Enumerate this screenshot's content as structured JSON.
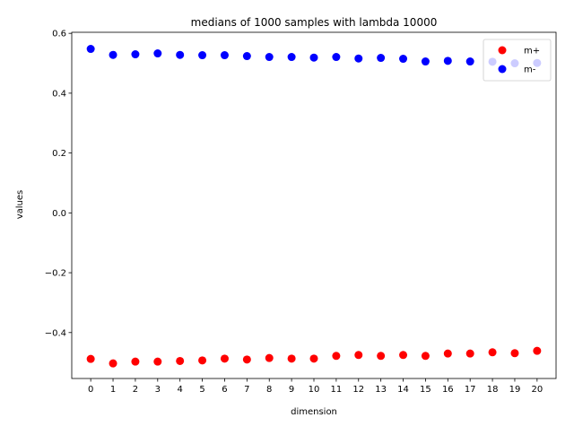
{
  "chart_data": {
    "type": "scatter",
    "title": "medians of 1000 samples with lambda 10000",
    "xlabel": "dimension",
    "ylabel": "values",
    "xlim": [
      -0.85,
      20.85
    ],
    "ylim": [
      -0.5535,
      0.6035
    ],
    "x_ticks": [
      0,
      1,
      2,
      3,
      4,
      5,
      6,
      7,
      8,
      9,
      10,
      11,
      12,
      13,
      14,
      15,
      16,
      17,
      18,
      19,
      20
    ],
    "y_ticks": [
      -0.4,
      -0.2,
      0.0,
      0.2,
      0.4,
      0.6
    ],
    "y_tick_labels": [
      "−0.4",
      "−0.2",
      "0.0",
      "0.2",
      "0.4",
      "0.6"
    ],
    "grid": false,
    "legend_position": "top-right",
    "x": [
      0,
      1,
      2,
      3,
      4,
      5,
      6,
      7,
      8,
      9,
      10,
      11,
      12,
      13,
      14,
      15,
      16,
      17,
      18,
      19,
      20
    ],
    "series": [
      {
        "name": "m+",
        "color": "#ff0000",
        "values": [
          -0.488,
          -0.503,
          -0.497,
          -0.497,
          -0.495,
          -0.493,
          -0.487,
          -0.49,
          -0.485,
          -0.487,
          -0.487,
          -0.478,
          -0.475,
          -0.478,
          -0.475,
          -0.478,
          -0.47,
          -0.47,
          -0.466,
          -0.469,
          -0.461
        ]
      },
      {
        "name": "m-",
        "color": "#0000ff",
        "values": [
          0.548,
          0.528,
          0.53,
          0.533,
          0.528,
          0.527,
          0.527,
          0.524,
          0.521,
          0.521,
          0.519,
          0.521,
          0.516,
          0.518,
          0.515,
          0.506,
          0.508,
          0.506,
          0.505,
          0.5,
          0.501
        ]
      }
    ]
  }
}
